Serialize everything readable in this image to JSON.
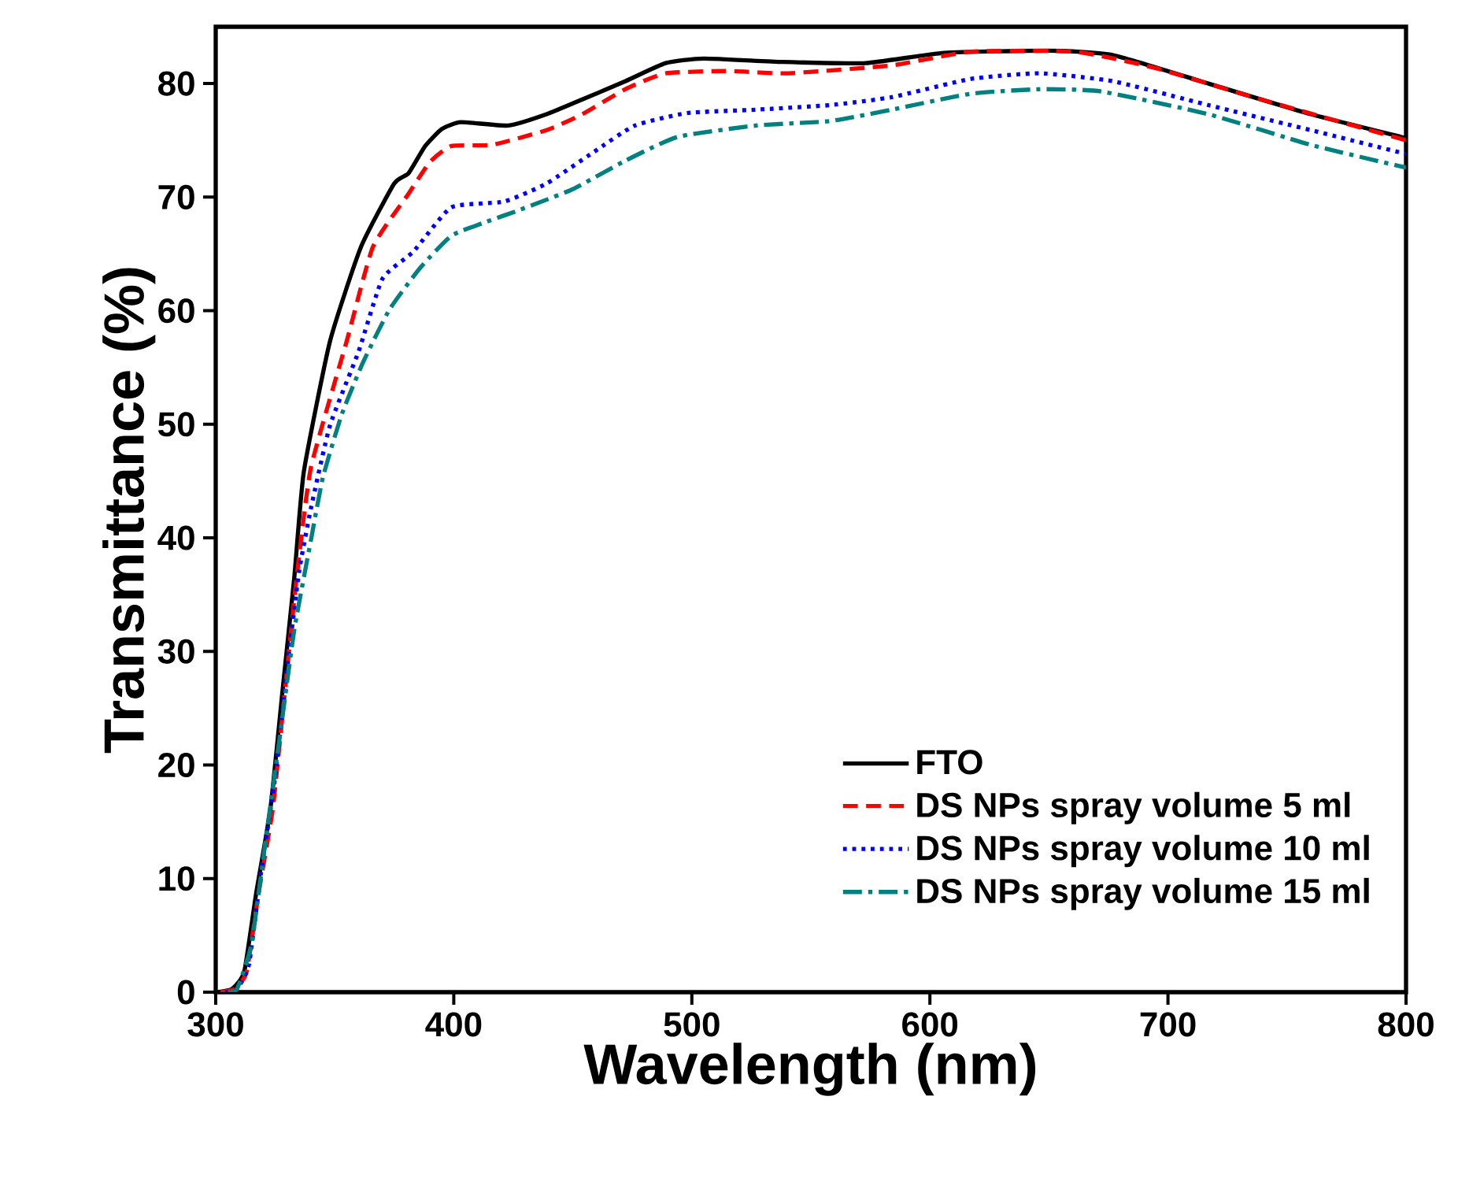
{
  "chart_data": {
    "type": "line",
    "xlabel": "Wavelength (nm)",
    "ylabel": "Transmittance (%)",
    "xlim": [
      300,
      800
    ],
    "ylim": [
      0,
      85
    ],
    "xticks": [
      300,
      400,
      500,
      600,
      700,
      800
    ],
    "yticks": [
      0,
      10,
      20,
      30,
      40,
      50,
      60,
      70,
      80
    ],
    "grid": false,
    "legend": "bottom right",
    "series": [
      {
        "name": "FTO",
        "color": "#000000",
        "line_style": "solid",
        "x": [
          301,
          307,
          312,
          317,
          323,
          328,
          333,
          337,
          348,
          361,
          375,
          381,
          388,
          395,
          403,
          423,
          439,
          454,
          472,
          489,
          505,
          538,
          573,
          606,
          650,
          677,
          717,
          760,
          800
        ],
        "values": [
          0,
          0.3,
          1.8,
          8.7,
          16.2,
          26.4,
          36.5,
          45.8,
          57.3,
          65.6,
          71.2,
          72.1,
          74.5,
          76,
          76.6,
          76.3,
          77.3,
          78.6,
          80.2,
          81.8,
          82.2,
          81.9,
          81.8,
          82.7,
          82.9,
          82.5,
          80,
          77.3,
          75.2
        ]
      },
      {
        "name": "DS NPs spray volume 5 ml",
        "color": "#ff0000",
        "line_style": "dashed",
        "x": [
          302,
          308,
          313,
          318,
          324,
          329,
          334,
          340,
          355,
          366,
          381,
          390,
          399,
          416,
          439,
          454,
          472,
          489,
          516,
          540,
          584,
          617,
          661,
          694,
          739,
          800
        ],
        "values": [
          0,
          0.3,
          1.8,
          8.7,
          16.2,
          26.4,
          36.5,
          46.2,
          57.3,
          65.6,
          70.3,
          73.1,
          74.5,
          74.6,
          75.9,
          77.3,
          79.5,
          80.9,
          81.1,
          80.9,
          81.6,
          82.8,
          82.8,
          81.4,
          78.6,
          75
        ]
      },
      {
        "name": "DS NPs spray volume 10 ml",
        "color": "#0000ff",
        "line_style": "dotted",
        "x": [
          304,
          309,
          314,
          319,
          325,
          330,
          335,
          340,
          348,
          360,
          370,
          383,
          399,
          421,
          439,
          459,
          476,
          498,
          527,
          558,
          584,
          617,
          646,
          677,
          717,
          760,
          800
        ],
        "values": [
          0,
          0.3,
          2.5,
          10.5,
          19,
          28.5,
          37,
          42.6,
          49.9,
          56.4,
          62.8,
          65.2,
          69.1,
          69.6,
          71.2,
          74,
          76.3,
          77.4,
          77.7,
          78.1,
          78.8,
          80.4,
          80.9,
          80.2,
          78.1,
          75.9,
          73.8
        ]
      },
      {
        "name": "DS NPs spray volume 15 ml",
        "color": "#008080",
        "line_style": "dashdot",
        "x": [
          305,
          309,
          315,
          321,
          327,
          333,
          340,
          345,
          353,
          362,
          373,
          386,
          399,
          412,
          428,
          450,
          472,
          494,
          527,
          558,
          584,
          617,
          646,
          672,
          717,
          760,
          800
        ],
        "values": [
          0,
          0.3,
          4.2,
          13.4,
          22.6,
          31.9,
          39.8,
          45.3,
          50.9,
          55.5,
          60.1,
          63.8,
          66.6,
          67.7,
          68.9,
          70.7,
          73.2,
          75.3,
          76.3,
          76.7,
          77.7,
          79.1,
          79.5,
          79.3,
          77.3,
          74.6,
          72.6
        ]
      }
    ]
  }
}
